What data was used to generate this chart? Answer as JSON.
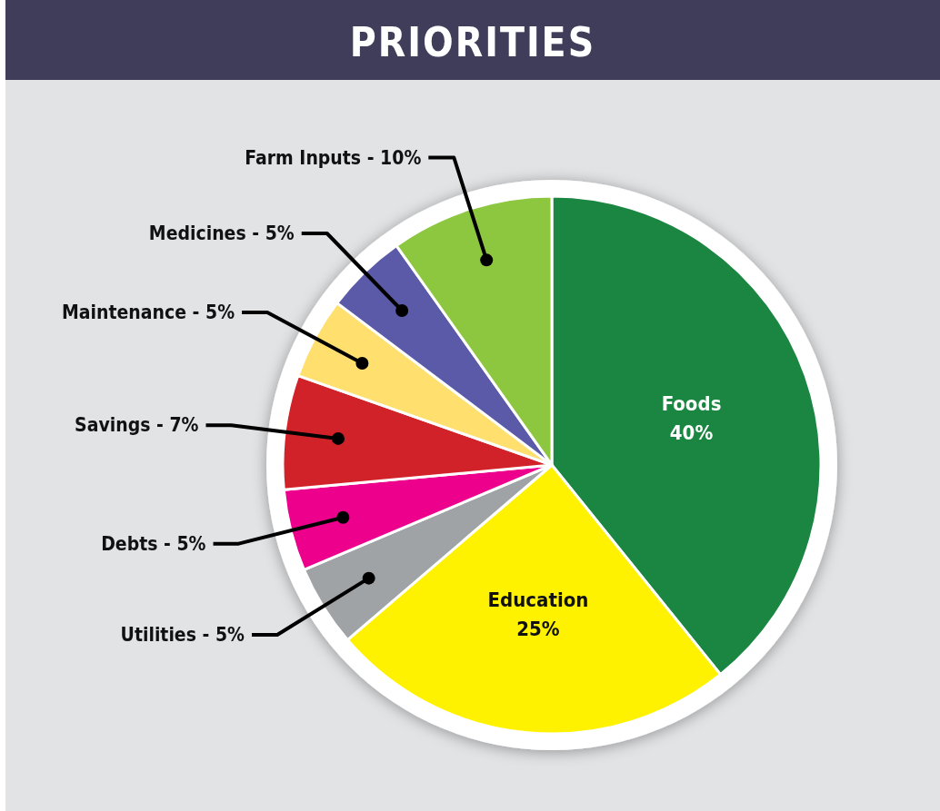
{
  "chart_data": {
    "type": "pie",
    "title": "PRIORITIES",
    "categories": [
      "Foods",
      "Education",
      "Utilities",
      "Debts",
      "Savings",
      "Maintenance",
      "Medicines",
      "Farm Inputs"
    ],
    "values": [
      40,
      25,
      5,
      5,
      7,
      5,
      5,
      10
    ],
    "colors": [
      "#1a8641",
      "#fff200",
      "#a0a3a6",
      "#ec008c",
      "#d12229",
      "#ffdf6e",
      "#5b5aa8",
      "#8dc63f"
    ],
    "value_labels": [
      "40%",
      "25%",
      "5%",
      "5%",
      "7%",
      "5%",
      "5%",
      "10%"
    ]
  }
}
